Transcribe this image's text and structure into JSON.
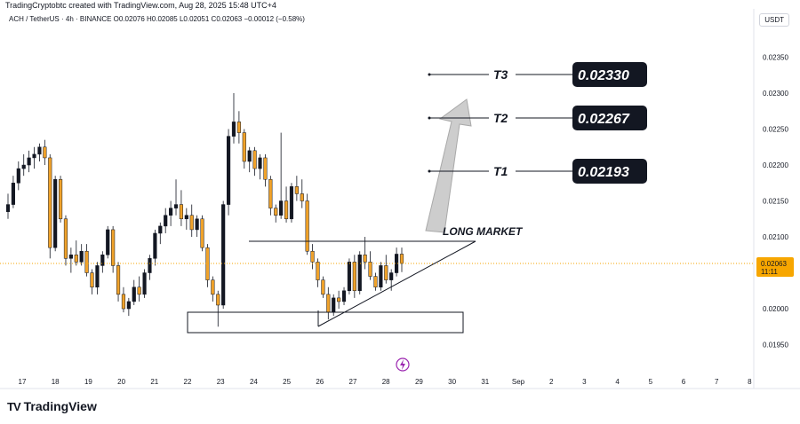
{
  "credit": "TradingCryptobtc created with TradingView.com, Aug 28, 2025 15:48 UTC+4",
  "symbol_info": "ACH / TetherUS · 4h · BINANCE  O0.02076  H0.02085  L0.02051  C0.02063  −0.00012 (−0.58%)",
  "currency": "USDT",
  "logo": {
    "mark": "TV",
    "name": "TradingView"
  },
  "current_price": {
    "value": "0.02063",
    "countdown": "11:11",
    "color": "#f7a600"
  },
  "colors": {
    "up": "#131722",
    "down": "#f0a22a",
    "accent": "#f7a600"
  },
  "chart_data": {
    "type": "candlestick",
    "title": "",
    "y_ticks": [
      "0.02350",
      "0.02300",
      "0.02250",
      "0.02200",
      "0.02150",
      "0.02100",
      "0.02000",
      "0.01950"
    ],
    "y_tick_values": [
      0.0235,
      0.023,
      0.0225,
      0.022,
      0.0215,
      0.021,
      0.02,
      0.0195
    ],
    "x_ticks": [
      "17",
      "18",
      "19",
      "20",
      "21",
      "22",
      "23",
      "24",
      "25",
      "26",
      "27",
      "28",
      "29",
      "30",
      "31",
      "Sep",
      "2",
      "3",
      "4",
      "5",
      "6",
      "7",
      "8"
    ],
    "ylim": [
      0.0192,
      0.0238
    ],
    "candles": [
      [
        0.02135,
        0.0216,
        0.02125,
        0.02145
      ],
      [
        0.02145,
        0.02185,
        0.0214,
        0.02175
      ],
      [
        0.02175,
        0.02205,
        0.02165,
        0.02195
      ],
      [
        0.02195,
        0.02215,
        0.02185,
        0.022
      ],
      [
        0.022,
        0.0222,
        0.0219,
        0.0221
      ],
      [
        0.0221,
        0.02225,
        0.02195,
        0.02215
      ],
      [
        0.02215,
        0.0223,
        0.02205,
        0.02225
      ],
      [
        0.02225,
        0.02235,
        0.022,
        0.0221
      ],
      [
        0.0221,
        0.02215,
        0.0207,
        0.02085
      ],
      [
        0.02085,
        0.02185,
        0.0208,
        0.0218
      ],
      [
        0.0218,
        0.02185,
        0.0212,
        0.02125
      ],
      [
        0.02125,
        0.0213,
        0.0206,
        0.0207
      ],
      [
        0.0207,
        0.02085,
        0.0205,
        0.02075
      ],
      [
        0.02075,
        0.02095,
        0.0206,
        0.02065
      ],
      [
        0.02065,
        0.0209,
        0.0206,
        0.0208
      ],
      [
        0.0208,
        0.0209,
        0.02045,
        0.0205
      ],
      [
        0.0205,
        0.02055,
        0.0202,
        0.0203
      ],
      [
        0.0203,
        0.02065,
        0.0202,
        0.0206
      ],
      [
        0.0206,
        0.0208,
        0.0205,
        0.02075
      ],
      [
        0.02075,
        0.02115,
        0.0207,
        0.0211
      ],
      [
        0.0211,
        0.02115,
        0.0205,
        0.0206
      ],
      [
        0.0206,
        0.02065,
        0.0201,
        0.0202
      ],
      [
        0.0202,
        0.0203,
        0.01995,
        0.02
      ],
      [
        0.02,
        0.02015,
        0.0199,
        0.0201
      ],
      [
        0.0201,
        0.0204,
        0.02005,
        0.0203
      ],
      [
        0.0203,
        0.02045,
        0.0201,
        0.0202
      ],
      [
        0.0202,
        0.02055,
        0.02015,
        0.0205
      ],
      [
        0.0205,
        0.02075,
        0.0204,
        0.0207
      ],
      [
        0.0207,
        0.0211,
        0.0206,
        0.02105
      ],
      [
        0.02105,
        0.0212,
        0.0209,
        0.02115
      ],
      [
        0.02115,
        0.0214,
        0.02105,
        0.0213
      ],
      [
        0.0213,
        0.0215,
        0.02115,
        0.0214
      ],
      [
        0.0214,
        0.0218,
        0.0213,
        0.02145
      ],
      [
        0.02145,
        0.02165,
        0.02115,
        0.02125
      ],
      [
        0.02125,
        0.0214,
        0.0211,
        0.0213
      ],
      [
        0.0213,
        0.02145,
        0.021,
        0.0211
      ],
      [
        0.0211,
        0.0213,
        0.021,
        0.02125
      ],
      [
        0.02125,
        0.0213,
        0.0208,
        0.02085
      ],
      [
        0.02085,
        0.0209,
        0.0203,
        0.0204
      ],
      [
        0.0204,
        0.02045,
        0.0201,
        0.0202
      ],
      [
        0.0202,
        0.02025,
        0.01975,
        0.02005
      ],
      [
        0.02005,
        0.0215,
        0.02,
        0.02145
      ],
      [
        0.02145,
        0.0225,
        0.0213,
        0.0224
      ],
      [
        0.0224,
        0.023,
        0.0223,
        0.0226
      ],
      [
        0.0226,
        0.02275,
        0.0223,
        0.02245
      ],
      [
        0.02245,
        0.0225,
        0.02195,
        0.02205
      ],
      [
        0.02205,
        0.02225,
        0.0219,
        0.0222
      ],
      [
        0.0222,
        0.02225,
        0.02185,
        0.02195
      ],
      [
        0.02195,
        0.02215,
        0.0218,
        0.0221
      ],
      [
        0.0221,
        0.02215,
        0.0217,
        0.0218
      ],
      [
        0.0218,
        0.02185,
        0.0213,
        0.0214
      ],
      [
        0.0214,
        0.02145,
        0.0212,
        0.0213
      ],
      [
        0.0213,
        0.02245,
        0.02125,
        0.0215
      ],
      [
        0.0215,
        0.0217,
        0.0212,
        0.02125
      ],
      [
        0.02125,
        0.02175,
        0.0212,
        0.0217
      ],
      [
        0.0217,
        0.02185,
        0.0215,
        0.0216
      ],
      [
        0.0216,
        0.0218,
        0.0214,
        0.0215
      ],
      [
        0.0215,
        0.0216,
        0.02075,
        0.0208
      ],
      [
        0.0208,
        0.0209,
        0.02055,
        0.02065
      ],
      [
        0.02065,
        0.0207,
        0.0203,
        0.0204
      ],
      [
        0.0204,
        0.02045,
        0.02015,
        0.0202
      ],
      [
        0.0202,
        0.0203,
        0.01985,
        0.01995
      ],
      [
        0.01995,
        0.0202,
        0.0199,
        0.02015
      ],
      [
        0.02015,
        0.02025,
        0.02,
        0.0201
      ],
      [
        0.0201,
        0.0203,
        0.02005,
        0.02025
      ],
      [
        0.02025,
        0.0207,
        0.0202,
        0.02065
      ],
      [
        0.02065,
        0.02075,
        0.02015,
        0.02025
      ],
      [
        0.02025,
        0.0208,
        0.0202,
        0.02075
      ],
      [
        0.02075,
        0.021,
        0.02055,
        0.02065
      ],
      [
        0.02065,
        0.0208,
        0.0204,
        0.02045
      ],
      [
        0.02045,
        0.0205,
        0.02025,
        0.0203
      ],
      [
        0.0203,
        0.02065,
        0.02025,
        0.0206
      ],
      [
        0.0206,
        0.02075,
        0.02035,
        0.0204
      ],
      [
        0.0204,
        0.02055,
        0.02025,
        0.0205
      ],
      [
        0.0205,
        0.02085,
        0.02045,
        0.02076
      ],
      [
        0.02076,
        0.02085,
        0.02051,
        0.02063
      ]
    ],
    "annotations": {
      "targets": [
        {
          "label": "T3",
          "value": "0.02330"
        },
        {
          "label": "T2",
          "value": "0.02267"
        },
        {
          "label": "T1",
          "value": "0.02193"
        }
      ],
      "text": "LONG MARKET",
      "support_zone": [
        0.01973,
        0.01998
      ],
      "triangle_top": 0.02093
    }
  }
}
